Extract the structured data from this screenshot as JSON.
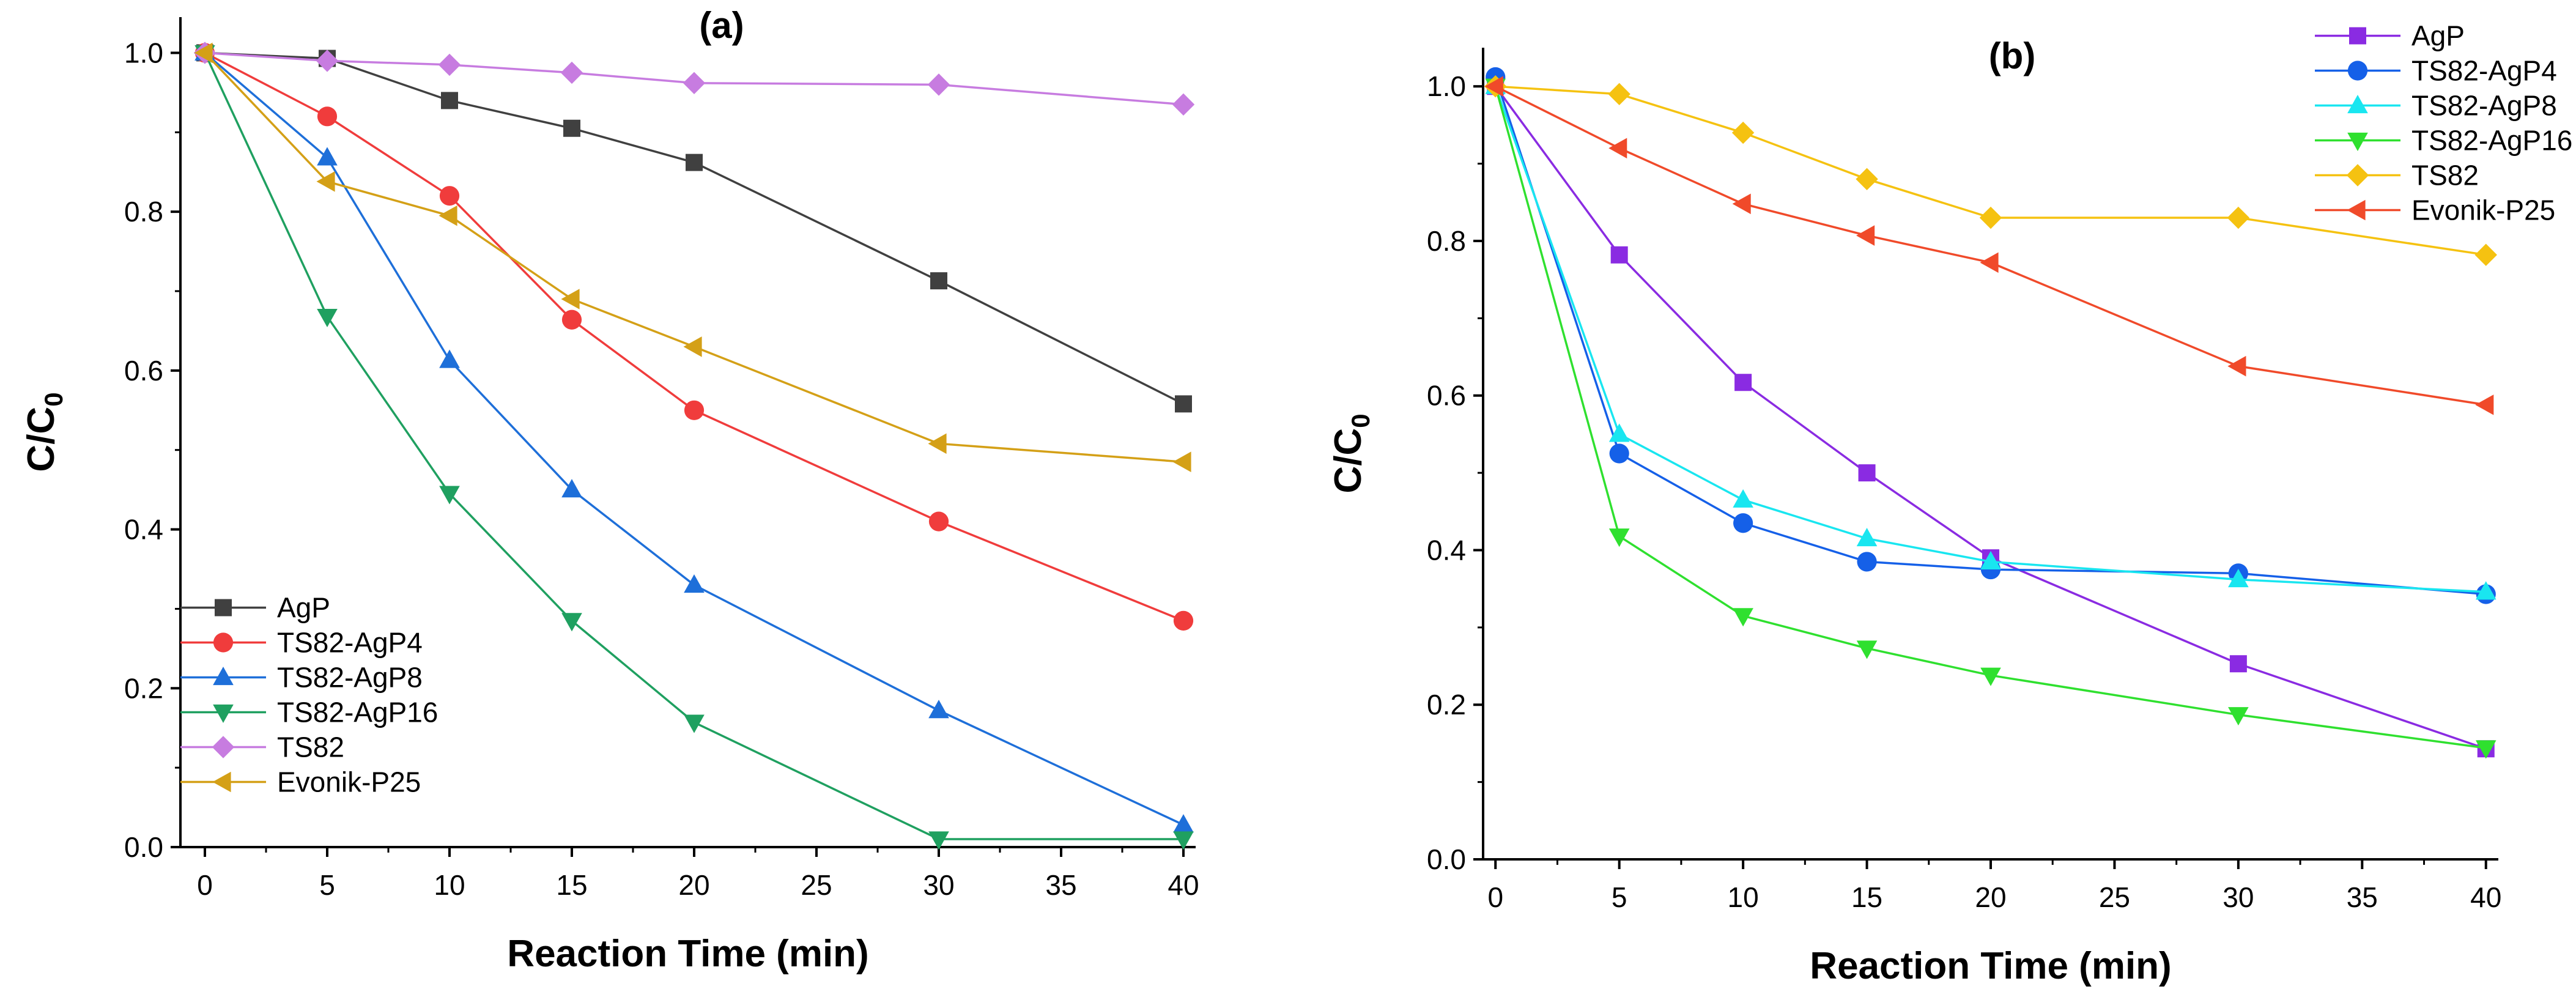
{
  "chart_data": [
    {
      "type": "line",
      "title": "(a)",
      "xlabel": "Reaction Time (min)",
      "ylabel_main": "C/C",
      "ylabel_sub": "0",
      "x_ticks": [
        0,
        5,
        10,
        15,
        20,
        25,
        30,
        35,
        40
      ],
      "y_ticks": [
        0.0,
        0.2,
        0.4,
        0.6,
        0.8,
        1.0
      ],
      "x_tick_labels": [
        "0",
        "5",
        "10",
        "15",
        "20",
        "25",
        "30",
        "35",
        "40"
      ],
      "y_tick_labels": [
        "0.0",
        "0.2",
        "0.4",
        "0.6",
        "0.8",
        "1.0"
      ],
      "xlim": [
        -1,
        40.5
      ],
      "ylim": [
        0.0,
        1.045
      ],
      "legend_position": "bottom-left",
      "series": [
        {
          "name": "AgP",
          "color": "#404040",
          "marker": "square",
          "x": [
            0,
            5,
            10,
            15,
            20,
            30,
            40
          ],
          "y": [
            1.0,
            0.993,
            0.94,
            0.905,
            0.862,
            0.713,
            0.558
          ]
        },
        {
          "name": "TS82-AgP4",
          "color": "#f03c3c",
          "marker": "circle",
          "x": [
            0,
            5,
            10,
            15,
            20,
            30,
            40
          ],
          "y": [
            1.0,
            0.92,
            0.82,
            0.664,
            0.55,
            0.41,
            0.285
          ]
        },
        {
          "name": "TS82-AgP8",
          "color": "#1e6fd9",
          "marker": "triangle-up",
          "x": [
            0,
            5,
            10,
            15,
            20,
            30,
            40
          ],
          "y": [
            1.0,
            0.868,
            0.613,
            0.45,
            0.33,
            0.172,
            0.028
          ]
        },
        {
          "name": "TS82-AgP16",
          "color": "#1fa060",
          "marker": "triangle-down",
          "x": [
            0,
            5,
            10,
            15,
            20,
            30,
            40
          ],
          "y": [
            1.0,
            0.668,
            0.445,
            0.285,
            0.157,
            0.01,
            0.01
          ]
        },
        {
          "name": "TS82",
          "color": "#c77ce0",
          "marker": "diamond",
          "x": [
            0,
            5,
            10,
            15,
            20,
            30,
            40
          ],
          "y": [
            1.0,
            0.99,
            0.985,
            0.975,
            0.962,
            0.96,
            0.935
          ]
        },
        {
          "name": "Evonik-P25",
          "color": "#d4a017",
          "marker": "triangle-left",
          "x": [
            0,
            5,
            10,
            15,
            20,
            30,
            40
          ],
          "y": [
            1.0,
            0.838,
            0.795,
            0.69,
            0.63,
            0.508,
            0.485
          ]
        }
      ]
    },
    {
      "type": "line",
      "title": "(b)",
      "xlabel": "Reaction Time (min)",
      "ylabel_main": "C/C",
      "ylabel_sub": "0",
      "x_ticks": [
        0,
        5,
        10,
        15,
        20,
        25,
        30,
        35,
        40
      ],
      "y_ticks": [
        0.0,
        0.2,
        0.4,
        0.6,
        0.8,
        1.0
      ],
      "x_tick_labels": [
        "0",
        "5",
        "10",
        "15",
        "20",
        "25",
        "30",
        "35",
        "40"
      ],
      "y_tick_labels": [
        "0.0",
        "0.2",
        "0.4",
        "0.6",
        "0.8",
        "1.0"
      ],
      "xlim": [
        -0.5,
        40.5
      ],
      "ylim": [
        0.0,
        1.05
      ],
      "legend_position": "top-right",
      "series": [
        {
          "name": "AgP",
          "color": "#8a2be2",
          "marker": "square",
          "x": [
            0,
            5,
            10,
            15,
            20,
            30,
            40
          ],
          "y": [
            1.0,
            0.782,
            0.617,
            0.5,
            0.39,
            0.253,
            0.143
          ]
        },
        {
          "name": "TS82-AgP4",
          "color": "#1560e8",
          "marker": "circle",
          "x": [
            0,
            5,
            10,
            15,
            20,
            30,
            40
          ],
          "y": [
            1.012,
            0.525,
            0.435,
            0.385,
            0.375,
            0.37,
            0.343
          ]
        },
        {
          "name": "TS82-AgP8",
          "color": "#19e6f0",
          "marker": "triangle-up",
          "x": [
            0,
            5,
            10,
            15,
            20,
            30,
            40
          ],
          "y": [
            1.0,
            0.55,
            0.465,
            0.415,
            0.385,
            0.362,
            0.346
          ]
        },
        {
          "name": "TS82-AgP16",
          "color": "#2fe02f",
          "marker": "triangle-down",
          "x": [
            0,
            5,
            10,
            15,
            20,
            30,
            40
          ],
          "y": [
            1.0,
            0.418,
            0.315,
            0.273,
            0.238,
            0.187,
            0.144
          ]
        },
        {
          "name": "TS82",
          "color": "#f5c211",
          "marker": "diamond",
          "x": [
            0,
            5,
            10,
            15,
            20,
            30,
            40
          ],
          "y": [
            1.0,
            0.99,
            0.94,
            0.88,
            0.83,
            0.83,
            0.782
          ]
        },
        {
          "name": "Evonik-P25",
          "color": "#f04a2a",
          "marker": "triangle-left",
          "x": [
            0,
            5,
            10,
            15,
            20,
            30,
            40
          ],
          "y": [
            1.0,
            0.92,
            0.848,
            0.807,
            0.772,
            0.638,
            0.588
          ]
        }
      ]
    }
  ]
}
